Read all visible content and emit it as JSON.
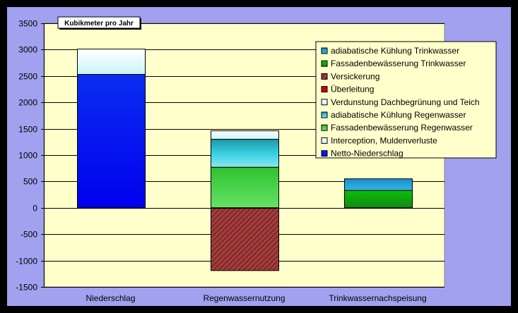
{
  "chart_data": {
    "type": "bar",
    "stacked": true,
    "title": "Kubikmeter pro Jahr",
    "xlabel": "",
    "ylabel": "",
    "ylim": [
      -1500,
      3500
    ],
    "ytick_step": 500,
    "grid": true,
    "legend_position": "top-right",
    "categories": [
      "Niederschlag",
      "Regenwassernutzung",
      "Trinkwassernachspeisung"
    ],
    "series": [
      {
        "name": "Netto-Niederschlag",
        "color": "#0000ff",
        "values": [
          2530,
          0,
          0
        ]
      },
      {
        "name": "Interception, Muldenverluste",
        "color": "#ffffff",
        "values": [
          480,
          0,
          0
        ]
      },
      {
        "name": "Fassadenbewässerung Regenwasser",
        "color": "#33cc33",
        "values": [
          0,
          770,
          0
        ]
      },
      {
        "name": "adiabatische Kühlung Regenwasser",
        "color": "#33cccc",
        "values": [
          0,
          530,
          0
        ]
      },
      {
        "name": "Verdunstung Dachbegrünung und Teich",
        "color": "#ccffff",
        "values": [
          0,
          160,
          0
        ]
      },
      {
        "name": "Überleitung",
        "color": "#cc0000",
        "values": [
          0,
          0,
          0
        ]
      },
      {
        "name": "Versickerung",
        "color": "#993333",
        "values": [
          0,
          -1190,
          0
        ]
      },
      {
        "name": "Fassadenbewässerung Trinkwasser",
        "color": "#00cc00",
        "values": [
          0,
          0,
          330
        ]
      },
      {
        "name": "adiabatische Kühlung Trinkwasser",
        "color": "#1a9ad6",
        "values": [
          0,
          0,
          220
        ]
      }
    ],
    "legend_order": [
      "adiabatische Kühlung Trinkwasser",
      "Fassadenbewässerung Trinkwasser",
      "Versickerung",
      "Überleitung",
      "Verdunstung Dachbegrünung und Teich",
      "adiabatische Kühlung Regenwasser",
      "Fassadenbewässerung Regenwasser",
      "Interception, Muldenverluste",
      "Netto-Niederschlag"
    ]
  }
}
